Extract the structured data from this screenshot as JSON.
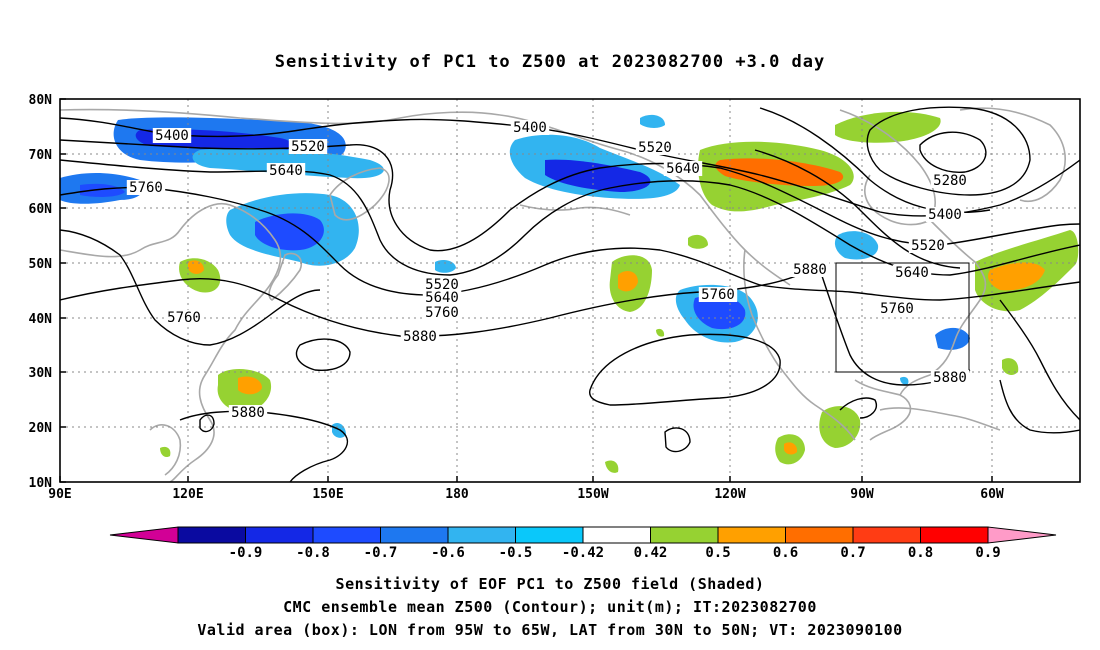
{
  "title": "Sensitivity of PC1 to Z500 at 2023082700 +3.0 day",
  "map": {
    "lat_labels": [
      "80N",
      "70N",
      "60N",
      "50N",
      "40N",
      "30N",
      "20N",
      "10N"
    ],
    "lon_labels": [
      "90E",
      "120E",
      "150E",
      "180",
      "150W",
      "120W",
      "90W",
      "60W"
    ],
    "grid_style": "dotted",
    "valid_box": {
      "lon": [
        "95W",
        "65W"
      ],
      "lat": [
        "30N",
        "50N"
      ]
    }
  },
  "contour_labels": [
    {
      "text": "5400",
      "pos": "NW Pacific / Asia"
    },
    {
      "text": "5520",
      "pos": "NW Pacific / Asia"
    },
    {
      "text": "5640",
      "pos": "NW Pacific / Asia"
    },
    {
      "text": "5760",
      "pos": "NW Pacific / Asia"
    },
    {
      "text": "5760",
      "pos": "Japan"
    },
    {
      "text": "5880",
      "pos": "W Pacific"
    },
    {
      "text": "5400",
      "pos": "Bering / Alaska"
    },
    {
      "text": "5520",
      "pos": "Alaska"
    },
    {
      "text": "5640",
      "pos": "Alaska"
    },
    {
      "text": "5520",
      "pos": "NE Pacific"
    },
    {
      "text": "5640",
      "pos": "NE Pacific"
    },
    {
      "text": "5760",
      "pos": "NE Pacific"
    },
    {
      "text": "5880",
      "pos": "NE Pacific"
    },
    {
      "text": "5760",
      "pos": "US West Coast"
    },
    {
      "text": "5880",
      "pos": "Central US"
    },
    {
      "text": "5280",
      "pos": "Hudson Bay / Canada"
    },
    {
      "text": "5400",
      "pos": "Canada"
    },
    {
      "text": "5520",
      "pos": "Canada"
    },
    {
      "text": "5640",
      "pos": "Great Lakes"
    },
    {
      "text": "5760",
      "pos": "Eastern US"
    },
    {
      "text": "5880",
      "pos": "Atlantic coast"
    }
  ],
  "colorbar": {
    "labels": [
      "-0.9",
      "-0.8",
      "-0.7",
      "-0.6",
      "-0.5",
      "-0.42",
      "0.42",
      "0.5",
      "0.6",
      "0.7",
      "0.8",
      "0.9"
    ],
    "colors": [
      "#0a0aa0",
      "#1428e6",
      "#1e4bff",
      "#1e78f0",
      "#32b4f0",
      "#0ac8fa",
      "#ffffff",
      "#96d232",
      "#ffa000",
      "#ff6e00",
      "#ff3c14",
      "#ff0000"
    ],
    "low_end_color": "#d20096",
    "high_end_color": "#ff9bc8"
  },
  "captions": [
    "Sensitivity of EOF PC1 to Z500 field (Shaded)",
    "CMC ensemble mean Z500 (Contour); unit(m); IT:2023082700",
    "Valid area (box): LON from 95W to 65W, LAT from 30N to 50N; VT: 2023090100"
  ]
}
